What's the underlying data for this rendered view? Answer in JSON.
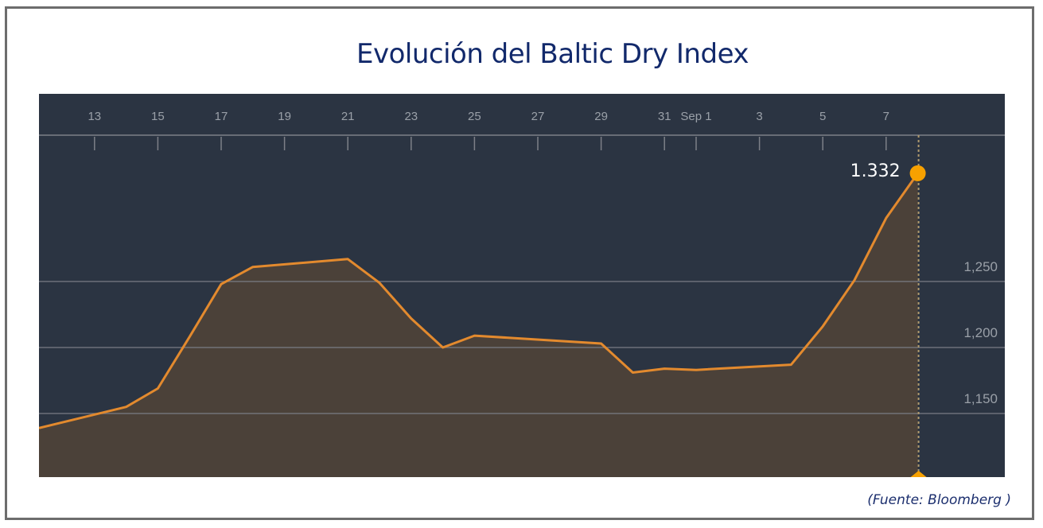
{
  "title": "Evolución del Baltic Dry Index",
  "source": "(Fuente: Bloomberg )",
  "colors": {
    "title": "#12296b",
    "plot_background": "#2b3442",
    "area_fill": "#4b4139",
    "line": "#e38a2e",
    "highlight_dot": "#f7a100",
    "gridline": "#7d8088",
    "axis_text": "#9aa0a8",
    "frame": "#6d6d6d"
  },
  "highlight": {
    "label": "1.332",
    "value": 1332,
    "date": "Sep 8"
  },
  "chart_data": {
    "type": "area",
    "title": "Evolución del Baltic Dry Index",
    "xlabel": "",
    "ylabel": "",
    "x_tick_labels": [
      "13",
      "15",
      "17",
      "19",
      "21",
      "23",
      "25",
      "27",
      "29",
      "31",
      "Sep 1",
      "3",
      "5",
      "7"
    ],
    "y_tick_labels": [
      "1,150",
      "1,200",
      "1,250"
    ],
    "y_ticks": [
      1150,
      1200,
      1250
    ],
    "ylim": [
      1102,
      1389
    ],
    "grid": true,
    "legend": null,
    "annotation": "1.332",
    "series": [
      {
        "name": "Baltic Dry Index",
        "x": [
          "Aug 11",
          "Aug 14",
          "Aug 15",
          "Aug 16",
          "Aug 17",
          "Aug 18",
          "Aug 21",
          "Aug 22",
          "Aug 23",
          "Aug 24",
          "Aug 25",
          "Aug 29",
          "Aug 30",
          "Aug 31",
          "Sep 1",
          "Sep 4",
          "Sep 5",
          "Sep 6",
          "Sep 7",
          "Sep 8"
        ],
        "day_index": [
          -0.8,
          2,
          3,
          4,
          5,
          6,
          9,
          10,
          11,
          12,
          13,
          17,
          18,
          19,
          20,
          23,
          24,
          25,
          26,
          27
        ],
        "values": [
          1139,
          1155,
          1169,
          1208,
          1248,
          1261,
          1267,
          1249,
          1222,
          1200,
          1209,
          1203,
          1181,
          1184,
          1183,
          1187,
          1216,
          1251,
          1298,
          1332
        ]
      }
    ]
  }
}
